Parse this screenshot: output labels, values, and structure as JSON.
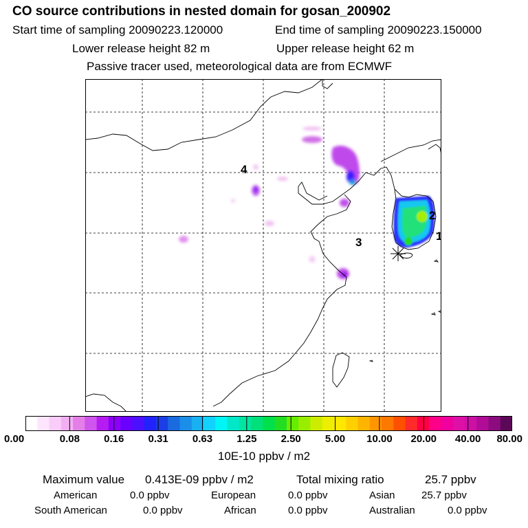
{
  "header": {
    "title": "CO  source contributions in nested domain for gosan_200902",
    "start_label": "Start time of sampling 20090223.120000",
    "end_label": "End time of sampling 20090223.150000",
    "lower_label": "Lower release height   82 m",
    "upper_label": "Upper release height   62 m",
    "note": "Passive tracer used, meteorological data are from ECMWF"
  },
  "map": {
    "region_labels": [
      "4",
      "2",
      "1",
      "3"
    ],
    "receptor_symbol": "receptor-star"
  },
  "colorbar": {
    "tick_labels": [
      "0.00",
      "0.08",
      "0.16",
      "0.31",
      "0.63",
      "1.25",
      "2.50",
      "5.00",
      "10.00",
      "20.00",
      "40.00",
      "80.00"
    ],
    "colors": [
      "#ffffff",
      "#fde6fd",
      "#f9ccf9",
      "#f2b0f2",
      "#e47fe8",
      "#d055ec",
      "#b51cf2",
      "#8c00f7",
      "#6a00ff",
      "#4b10ff",
      "#2222ff",
      "#1c3ee6",
      "#1a6ae0",
      "#1a8ee8",
      "#19b0f2",
      "#12d2ff",
      "#00f5f5",
      "#00e8c8",
      "#00e6a0",
      "#00e07a",
      "#00e04a",
      "#22dd22",
      "#66ee00",
      "#99ee00",
      "#cced00",
      "#eeee00",
      "#ffe800",
      "#ffd000",
      "#ffb400",
      "#ff9600",
      "#ff7800",
      "#ff5000",
      "#ff2a2a",
      "#ff0044",
      "#ff0088",
      "#f0009c",
      "#dd10a8",
      "#cc10a4",
      "#b00c98",
      "#8c0c80",
      "#5c0858"
    ],
    "unit_label": "10E-10 ppbv / m2"
  },
  "summary": {
    "max_label": "Maximum value",
    "max_value": "0.413E-09 ppbv / m2",
    "total_label": "Total mixing ratio",
    "total_value": "25.7 ppbv",
    "regions": [
      {
        "name": "American",
        "value": "0.0 ppbv"
      },
      {
        "name": "European",
        "value": "0.0 ppbv"
      },
      {
        "name": "Asian",
        "value": "25.7 ppbv"
      },
      {
        "name": "South American",
        "value": "0.0 ppbv"
      },
      {
        "name": "African",
        "value": "0.0 ppbv"
      },
      {
        "name": "Australian",
        "value": "0.0 ppbv"
      }
    ]
  }
}
